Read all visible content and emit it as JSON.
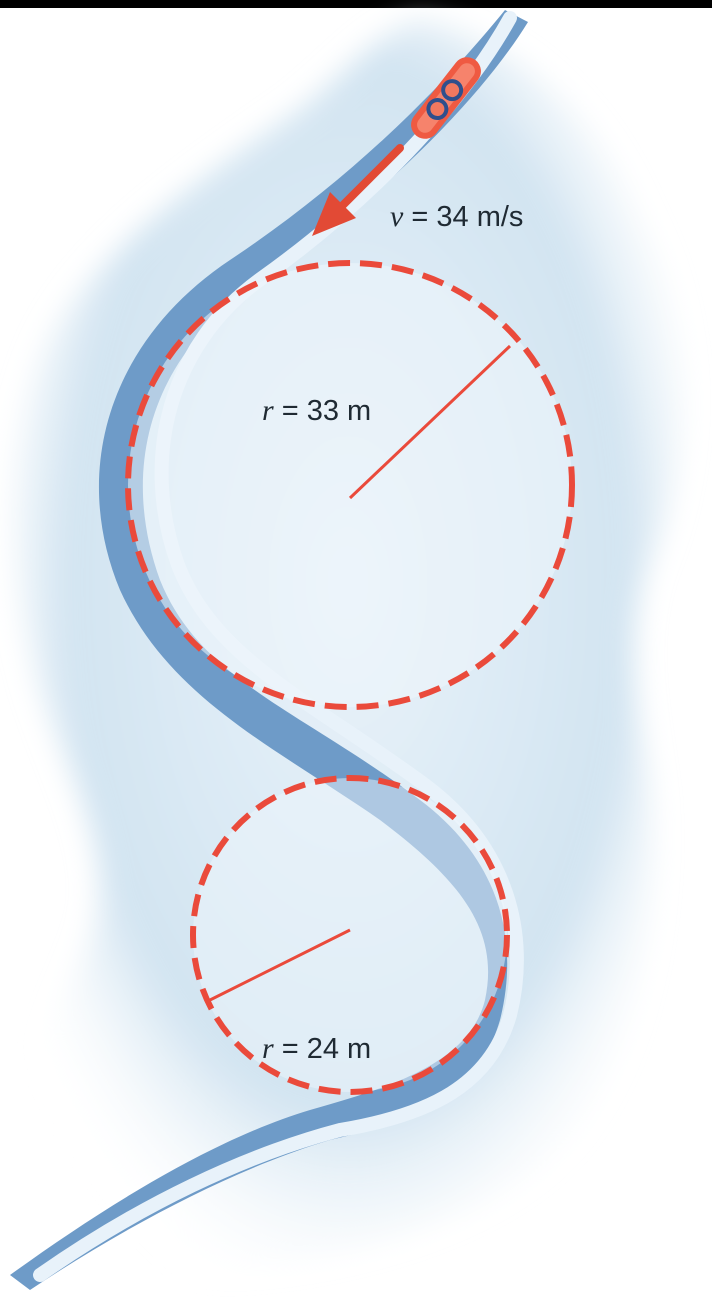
{
  "diagram": {
    "speed_label": {
      "symbol": "v",
      "text": " = 34 m/s"
    },
    "large_curve_label": {
      "symbol": "r",
      "text": " = 33 m"
    },
    "small_curve_label": {
      "symbol": "r",
      "text": " = 24 m"
    },
    "colors": {
      "background_snow": "#cfe2f0",
      "track_shadow": "#6f9cc9",
      "track_surface": "#eaf4fb",
      "dashed_circle": "#ea4a3b",
      "radius_line": "#ea4a3b",
      "velocity_arrow": "#e24a35",
      "bobsled_body": "#ef5a42"
    },
    "icons": [
      "bobsled-icon",
      "velocity-arrow-icon"
    ]
  }
}
